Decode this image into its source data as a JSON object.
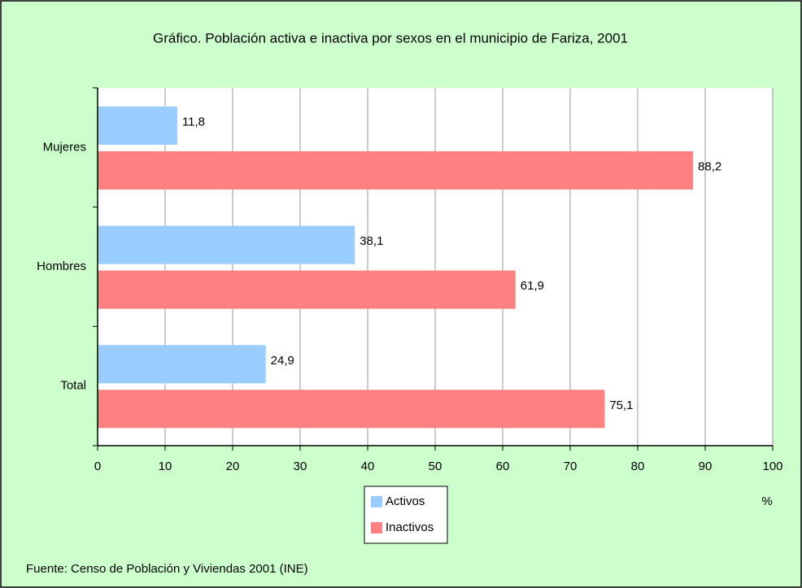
{
  "chart_data": {
    "type": "hbar",
    "title": "Gráfico.  Población activa e inactiva por sexos en el municipio de Fariza, 2001",
    "categories": [
      "Mujeres",
      "Hombres",
      "Total"
    ],
    "series": [
      {
        "name": "Activos",
        "color": "#99ccff",
        "values": [
          11.8,
          38.1,
          24.9
        ],
        "value_labels": [
          "11,8",
          "38,1",
          "24,9"
        ]
      },
      {
        "name": "Inactivos",
        "color": "#ff8080",
        "values": [
          88.2,
          61.9,
          75.1
        ],
        "value_labels": [
          "88,2",
          "61,9",
          "75,1"
        ]
      }
    ],
    "xlim": [
      0,
      100
    ],
    "xticks": [
      0,
      10,
      20,
      30,
      40,
      50,
      60,
      70,
      80,
      90,
      100
    ],
    "xlabel": "%",
    "grid": true,
    "source": "Fuente: Censo de Población y Viviendas 2001 (INE)"
  }
}
